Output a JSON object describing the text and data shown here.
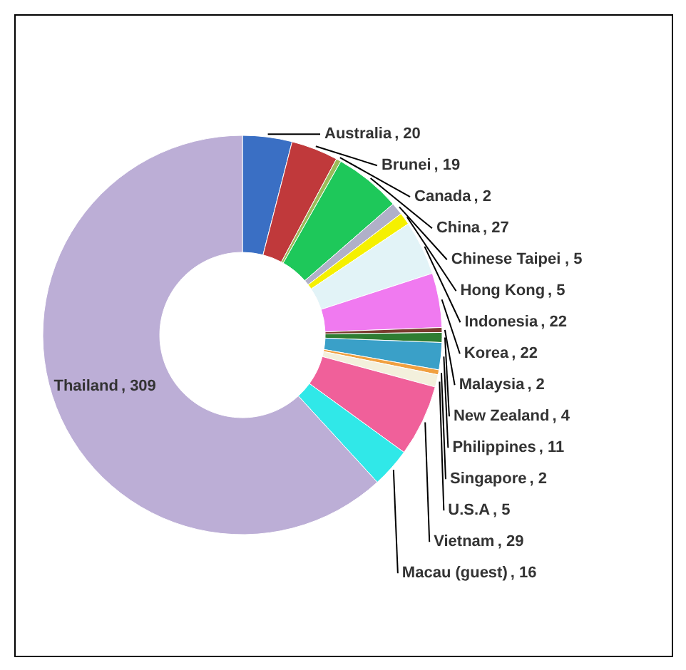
{
  "chart_data": {
    "type": "donut",
    "value_labels": [
      ", 20",
      " , 19",
      ", 2",
      ", 27",
      ", 5",
      ",  5",
      ", 22",
      ", 22",
      ", 2",
      ", 4",
      ", 11",
      ", 2",
      ", 5",
      ", 29",
      ", 16",
      ", 309"
    ],
    "categories": [
      "Australia",
      "Brunei",
      "Canada",
      "China",
      "Chinese Taipei",
      "Hong Kong",
      "Indonesia",
      "Korea",
      "Malaysia",
      "New Zealand",
      "Philippines",
      "Singapore",
      "U.S.A",
      "Vietnam",
      "Macau (guest)",
      "Thailand"
    ],
    "values": [
      20,
      19,
      2,
      27,
      5,
      5,
      22,
      22,
      2,
      4,
      11,
      2,
      5,
      29,
      16,
      309
    ],
    "colors": [
      "#3a6fc4",
      "#c0393b",
      "#9bbb59",
      "#1ec85a",
      "#b0b0c8",
      "#f5f000",
      "#e2f3f7",
      "#f07af0",
      "#7a3b2e",
      "#2e7d32",
      "#3aa0c8",
      "#f0a040",
      "#f3f0dc",
      "#f0609a",
      "#30e8e8",
      "#bcaed6"
    ]
  }
}
